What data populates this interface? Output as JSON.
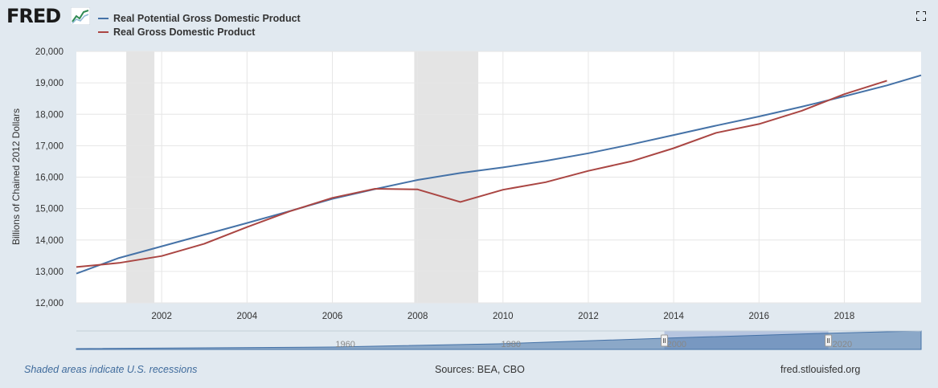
{
  "header": {
    "logo_text": "FRED",
    "logo_icon": "line-graph-icon",
    "fullscreen_icon": "fullscreen-icon"
  },
  "colors": {
    "potential": "#4572a7",
    "gdp": "#aa4643",
    "recession": "#e4e4e4",
    "navigator_fill": "#4572a7"
  },
  "chart_data": {
    "type": "line",
    "title": "",
    "xlabel": "",
    "ylabel": "Billions of Chained 2012 Dollars",
    "xlim": [
      2000,
      2019.8
    ],
    "ylim": [
      12000,
      20000
    ],
    "grid": true,
    "legend_position": "top-left",
    "x_ticks": [
      2002,
      2004,
      2006,
      2008,
      2010,
      2012,
      2014,
      2016,
      2018
    ],
    "y_ticks": [
      12000,
      13000,
      14000,
      15000,
      16000,
      17000,
      18000,
      19000,
      20000
    ],
    "y_tick_labels": [
      "12,000",
      "13,000",
      "14,000",
      "15,000",
      "16,000",
      "17,000",
      "18,000",
      "19,000",
      "20,000"
    ],
    "recessions": [
      [
        2001.17,
        2001.83
      ],
      [
        2007.92,
        2009.42
      ]
    ],
    "series": [
      {
        "name": "Real Potential Gross Domestic Product",
        "color": "#4572a7",
        "x": [
          2000,
          2001,
          2002,
          2003,
          2004,
          2005,
          2006,
          2007,
          2008,
          2009,
          2010,
          2011,
          2012,
          2013,
          2014,
          2015,
          2016,
          2017,
          2018,
          2019,
          2019.8
        ],
        "values": [
          12930,
          13430,
          13800,
          14170,
          14540,
          14920,
          15310,
          15620,
          15910,
          16130,
          16310,
          16520,
          16760,
          17040,
          17340,
          17640,
          17930,
          18240,
          18570,
          18920,
          19240
        ]
      },
      {
        "name": "Real Gross Domestic Product",
        "color": "#aa4643",
        "x": [
          2000,
          2001,
          2002,
          2003,
          2004,
          2005,
          2006,
          2007,
          2008,
          2009,
          2010,
          2011,
          2012,
          2013,
          2014,
          2015,
          2016,
          2017,
          2018,
          2019
        ],
        "values": [
          13140,
          13270,
          13490,
          13880,
          14410,
          14910,
          15340,
          15630,
          15610,
          15210,
          15600,
          15840,
          16200,
          16500,
          16920,
          17410,
          17690,
          18110,
          18640,
          19070
        ]
      }
    ],
    "navigator": {
      "x_labels": [
        "1960",
        "1980",
        "2000",
        "2020"
      ],
      "x_label_years": [
        1960,
        1980,
        2000,
        2020
      ],
      "xlim": [
        1929,
        2031
      ],
      "selected_range": [
        2000,
        2019.8
      ],
      "x": [
        1929,
        1960,
        1980,
        2000,
        2019,
        2031
      ],
      "values": [
        1,
        3,
        7,
        14,
        20,
        23
      ]
    }
  },
  "footer": {
    "note": "Shaded areas indicate U.S. recessions",
    "sources": "Sources: BEA, CBO",
    "url": "fred.stlouisfed.org"
  }
}
